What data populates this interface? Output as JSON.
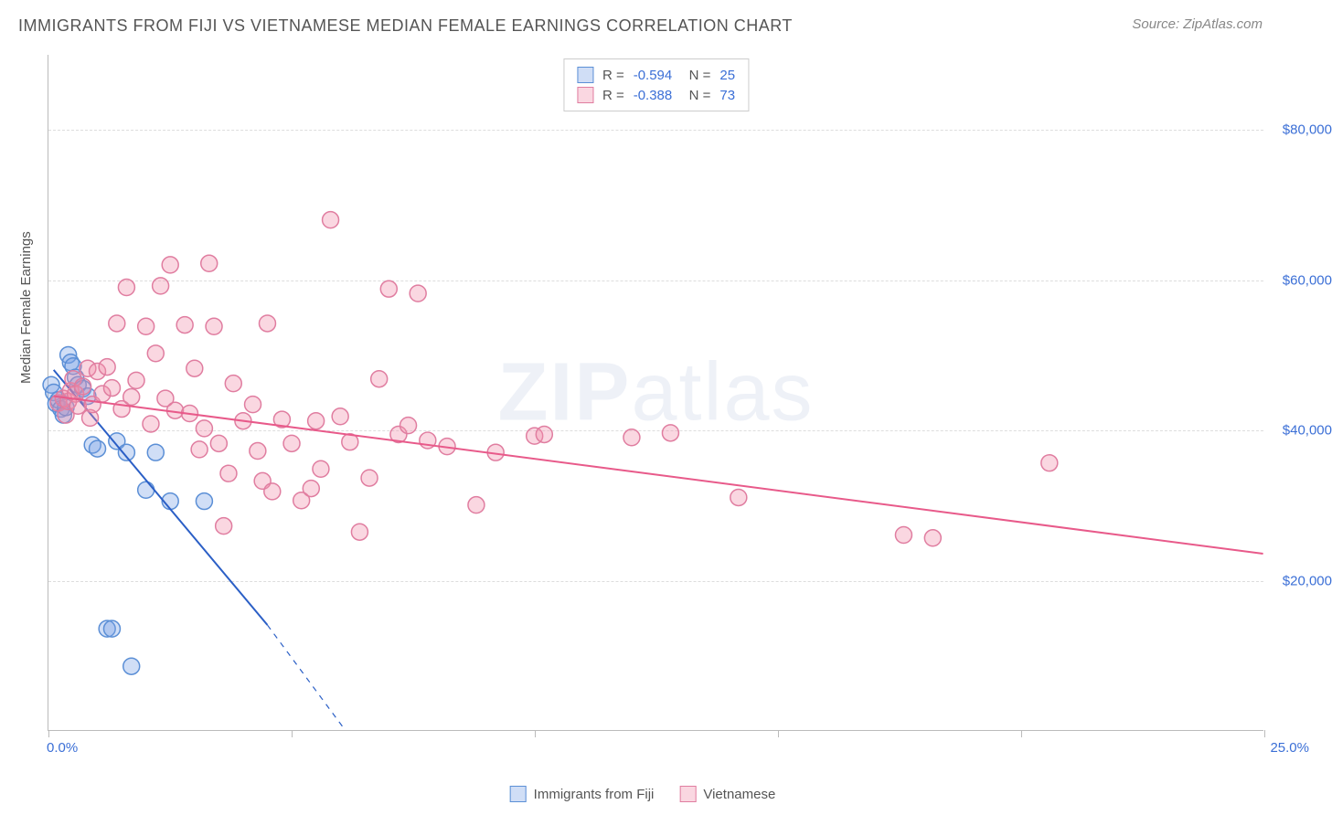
{
  "header": {
    "title": "IMMIGRANTS FROM FIJI VS VIETNAMESE MEDIAN FEMALE EARNINGS CORRELATION CHART",
    "source_prefix": "Source: ",
    "source_name": "ZipAtlas.com"
  },
  "watermark": {
    "zip": "ZIP",
    "atlas": "atlas"
  },
  "chart": {
    "type": "scatter",
    "xlim": [
      0,
      25
    ],
    "ylim": [
      0,
      90000
    ],
    "ytick_values": [
      20000,
      40000,
      60000,
      80000
    ],
    "ytick_labels": [
      "$20,000",
      "$40,000",
      "$60,000",
      "$80,000"
    ],
    "xtick_values": [
      0,
      5,
      10,
      15,
      20,
      25
    ],
    "xtick_labels": {
      "min": "0.0%",
      "max": "25.0%"
    },
    "ylabel": "Median Female Earnings",
    "grid_color": "#dddddd",
    "axis_color": "#bbbbbb",
    "background_color": "#ffffff",
    "marker_radius": 9,
    "marker_stroke_width": 1.5,
    "line_width": 2,
    "series": [
      {
        "name": "Immigrants from Fiji",
        "fill_color": "rgba(120,160,230,0.35)",
        "stroke_color": "#5b8fd6",
        "line_color": "#2b5fc6",
        "R": "-0.594",
        "N": "25",
        "trend": {
          "x1": 0.1,
          "y1": 48000,
          "x2": 4.5,
          "y2": 14000,
          "dash_x2": 6.1,
          "dash_y2": 0
        },
        "points": [
          [
            0.05,
            46000
          ],
          [
            0.1,
            45000
          ],
          [
            0.15,
            43500
          ],
          [
            0.2,
            44000
          ],
          [
            0.25,
            42800
          ],
          [
            0.3,
            42000
          ],
          [
            0.35,
            43000
          ],
          [
            0.4,
            50000
          ],
          [
            0.45,
            49000
          ],
          [
            0.5,
            48500
          ],
          [
            0.55,
            47000
          ],
          [
            0.6,
            46000
          ],
          [
            0.7,
            45500
          ],
          [
            0.8,
            44500
          ],
          [
            0.9,
            38000
          ],
          [
            1.0,
            37500
          ],
          [
            1.4,
            38500
          ],
          [
            1.6,
            37000
          ],
          [
            2.0,
            32000
          ],
          [
            2.2,
            37000
          ],
          [
            2.5,
            30500
          ],
          [
            3.2,
            30500
          ],
          [
            1.2,
            13500
          ],
          [
            1.3,
            13500
          ],
          [
            1.7,
            8500
          ]
        ]
      },
      {
        "name": "Vietnamese",
        "fill_color": "rgba(240,140,170,0.35)",
        "stroke_color": "#e07da0",
        "line_color": "#e85a8a",
        "R": "-0.388",
        "N": "73",
        "trend": {
          "x1": 0.1,
          "y1": 44500,
          "x2": 25,
          "y2": 23500
        },
        "points": [
          [
            0.2,
            43600
          ],
          [
            0.3,
            44200
          ],
          [
            0.35,
            42000
          ],
          [
            0.4,
            43800
          ],
          [
            0.45,
            45200
          ],
          [
            0.5,
            46800
          ],
          [
            0.55,
            44800
          ],
          [
            0.6,
            43200
          ],
          [
            0.7,
            45800
          ],
          [
            0.8,
            48200
          ],
          [
            0.85,
            41600
          ],
          [
            0.9,
            43400
          ],
          [
            1.0,
            47800
          ],
          [
            1.1,
            44800
          ],
          [
            1.2,
            48400
          ],
          [
            1.3,
            45600
          ],
          [
            1.4,
            54200
          ],
          [
            1.5,
            42800
          ],
          [
            1.6,
            59000
          ],
          [
            1.7,
            44400
          ],
          [
            1.8,
            46600
          ],
          [
            2.0,
            53800
          ],
          [
            2.1,
            40800
          ],
          [
            2.2,
            50200
          ],
          [
            2.3,
            59200
          ],
          [
            2.4,
            44200
          ],
          [
            2.5,
            62000
          ],
          [
            2.6,
            42600
          ],
          [
            2.8,
            54000
          ],
          [
            2.9,
            42200
          ],
          [
            3.0,
            48200
          ],
          [
            3.2,
            40200
          ],
          [
            3.3,
            62200
          ],
          [
            3.4,
            53800
          ],
          [
            3.5,
            38200
          ],
          [
            3.6,
            27200
          ],
          [
            3.7,
            34200
          ],
          [
            3.8,
            46200
          ],
          [
            4.0,
            41200
          ],
          [
            4.2,
            43400
          ],
          [
            4.4,
            33200
          ],
          [
            4.5,
            54200
          ],
          [
            4.6,
            31800
          ],
          [
            4.8,
            41400
          ],
          [
            5.0,
            38200
          ],
          [
            5.2,
            30600
          ],
          [
            5.4,
            32200
          ],
          [
            5.6,
            34800
          ],
          [
            5.8,
            68000
          ],
          [
            6.0,
            41800
          ],
          [
            6.2,
            38400
          ],
          [
            6.4,
            26400
          ],
          [
            6.6,
            33600
          ],
          [
            6.8,
            46800
          ],
          [
            7.0,
            58800
          ],
          [
            7.2,
            39400
          ],
          [
            7.4,
            40600
          ],
          [
            7.6,
            58200
          ],
          [
            7.8,
            38600
          ],
          [
            8.2,
            37800
          ],
          [
            8.8,
            30000
          ],
          [
            9.2,
            37000
          ],
          [
            10.0,
            39200
          ],
          [
            10.2,
            39400
          ],
          [
            12.0,
            39000
          ],
          [
            12.8,
            39600
          ],
          [
            14.2,
            31000
          ],
          [
            17.6,
            26000
          ],
          [
            18.2,
            25600
          ],
          [
            20.6,
            35600
          ],
          [
            5.5,
            41200
          ],
          [
            4.3,
            37200
          ],
          [
            3.1,
            37400
          ]
        ]
      }
    ]
  },
  "legend_bottom": {
    "series1": "Immigrants from Fiji",
    "series2": "Vietnamese"
  }
}
